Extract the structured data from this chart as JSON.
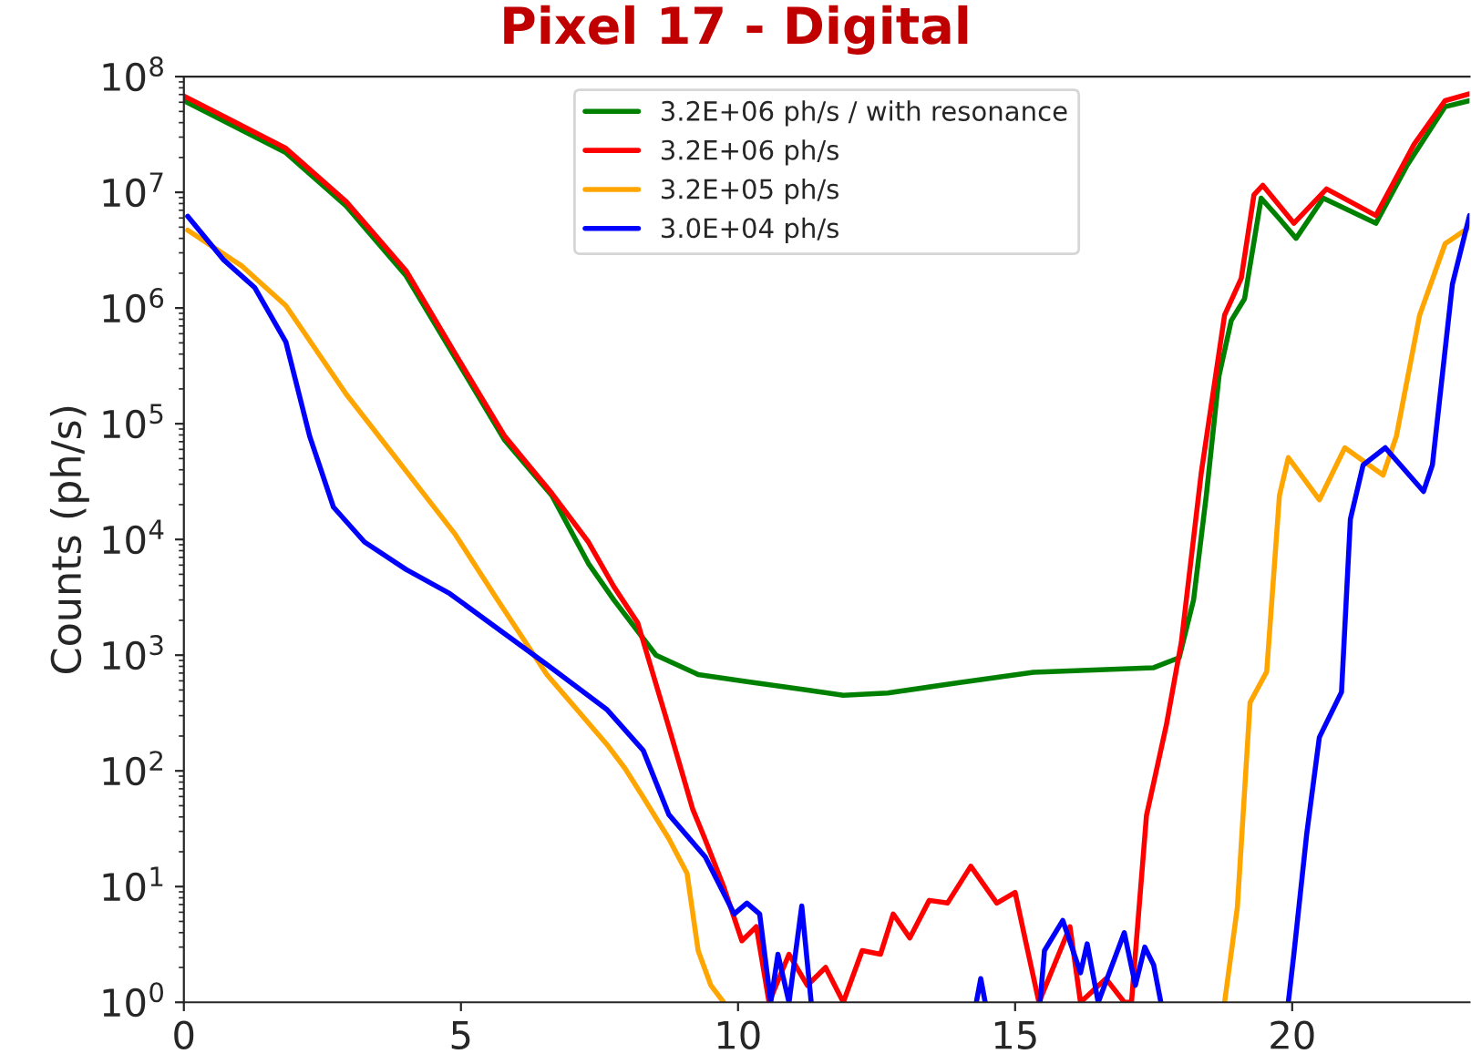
{
  "chart_data": {
    "type": "line",
    "title": "Pixel 17 - Digital",
    "ylabel": "Counts (ph/s)",
    "log": "y",
    "grid": false,
    "legend": "top",
    "xlim": [
      0,
      23.2
    ],
    "xticks": [
      0,
      5,
      10,
      15,
      20
    ],
    "ylim": [
      1,
      100000000.0
    ],
    "yticks": [
      {
        "value": 1,
        "label": "10$^{0}$"
      },
      {
        "value": 10,
        "label": "10$^{1}$"
      },
      {
        "value": 100,
        "label": "10$^{2}$"
      },
      {
        "value": 1000,
        "label": "10$^{3}$"
      },
      {
        "value": 10000,
        "label": "10$^{4}$"
      },
      {
        "value": 100000,
        "label": "10$^{5}$"
      },
      {
        "value": 1000000,
        "label": "10$^{6}$"
      },
      {
        "value": 10000000,
        "label": "10$^{7}$"
      },
      {
        "value": 100000000,
        "label": "10$^{8}$"
      }
    ],
    "series": [
      {
        "name": "3.2E+06 ph/s / with resonance",
        "color": "#008000",
        "x": [
          0,
          1.84,
          2.93,
          4.01,
          4.9,
          5.79,
          6.64,
          7.3,
          7.76,
          8.52,
          9.28,
          10.16,
          11.25,
          11.9,
          12.7,
          14.0,
          15.33,
          17.5,
          17.96,
          18.22,
          18.45,
          18.68,
          18.9,
          19.14,
          19.44,
          19.77,
          20.07,
          20.56,
          21.51,
          22.07,
          22.76,
          23.2
        ],
        "values": [
          62000000.0,
          22000000.0,
          7600000.0,
          1900000.0,
          370000.0,
          72000.0,
          24000.0,
          6200.0,
          3000.0,
          1000.0,
          680,
          590,
          500,
          450,
          470,
          580,
          710,
          780,
          950,
          3000.0,
          24000.0,
          260000.0,
          780000.0,
          1200000.0,
          8900000.0,
          5900000.0,
          4000000.0,
          8900000.0,
          5400000.0,
          17000000.0,
          55000000.0,
          62000000.0
        ]
      },
      {
        "name": "3.2E+06 ph/s",
        "color": "#ff0000",
        "x": [
          0,
          1.84,
          2.93,
          4.01,
          4.9,
          5.79,
          6.64,
          7.3,
          7.76,
          8.19,
          8.75,
          9.18,
          9.4,
          9.74,
          10.07,
          10.33,
          10.56,
          10.92,
          11.25,
          11.58,
          11.9,
          12.24,
          12.57,
          12.8,
          13.1,
          13.45,
          13.78,
          14.2,
          14.67,
          15.0,
          15.2,
          15.43,
          15.99,
          16.18,
          16.64,
          16.97,
          17.1,
          17.37,
          17.73,
          18.0,
          18.36,
          18.78,
          19.08,
          19.31,
          19.47,
          20.03,
          20.62,
          21.51,
          22.2,
          22.76,
          23.2
        ],
        "values": [
          68000000.0,
          24000000.0,
          8300000.0,
          2100000.0,
          400000.0,
          78000.0,
          25000.0,
          9500.0,
          3900.0,
          1900.0,
          240,
          47,
          26,
          10,
          3.4,
          4.5,
          1,
          2.6,
          1.4,
          2.0,
          1,
          2.8,
          2.6,
          5.8,
          3.6,
          7.6,
          7.2,
          15,
          7.2,
          8.9,
          3.2,
          1,
          4.5,
          1,
          1.6,
          1,
          1,
          41,
          250,
          1300.0,
          38000.0,
          870000.0,
          1800000.0,
          9500000.0,
          11500000.0,
          5400000.0,
          10700000.0,
          6300000.0,
          26000000.0,
          62000000.0,
          71000000.0
        ]
      },
      {
        "name": "3.2E+05 ph/s",
        "color": "#ffa500",
        "x": [
          0.07,
          1.05,
          1.84,
          2.93,
          4.01,
          4.9,
          5.66,
          6.55,
          7.63,
          7.96,
          8.29,
          8.75,
          9.08,
          9.28,
          9.51,
          9.74,
          14.0,
          18.78,
          19.01,
          19.24,
          19.54,
          19.77,
          19.93,
          20.49,
          20.95,
          21.64,
          21.88,
          22.3,
          22.76,
          23.2
        ],
        "values": [
          4700000.0,
          2300000.0,
          1050000.0,
          180000.0,
          39000.0,
          11000.0,
          3000.0,
          680,
          170,
          105,
          59,
          26,
          13,
          2.8,
          1.4,
          1,
          null,
          1,
          6.6,
          390,
          720,
          24000.0,
          51000.0,
          22000.0,
          62000.0,
          36000.0,
          78000.0,
          870000.0,
          3600000.0,
          5000000.0
        ]
      },
      {
        "name": "3.0E+04 ph/s",
        "color": "#0000ff",
        "x": [
          0.07,
          0.72,
          1.28,
          1.84,
          2.27,
          2.7,
          3.26,
          4.01,
          4.8,
          6.55,
          7.63,
          8.29,
          8.75,
          9.41,
          9.93,
          10.16,
          10.39,
          10.59,
          10.72,
          10.92,
          11.15,
          11.32,
          12.5,
          14.3,
          14.38,
          14.46,
          14.9,
          15.45,
          15.53,
          15.86,
          16.18,
          16.3,
          16.5,
          16.97,
          17.17,
          17.34,
          17.5,
          17.63,
          18.8,
          19.93,
          20.03,
          20.26,
          20.49,
          20.89,
          21.05,
          21.28,
          21.68,
          22.37,
          22.53,
          22.89,
          23.2
        ],
        "values": [
          6200000.0,
          2600000.0,
          1500000.0,
          510000.0,
          78000.0,
          19000.0,
          9500.0,
          5500.0,
          3400.0,
          830,
          340,
          150,
          42,
          18,
          5.8,
          7.2,
          5.8,
          1,
          2.6,
          1,
          6.8,
          1,
          null,
          1,
          1.6,
          1,
          null,
          1,
          2.8,
          5.1,
          1.8,
          3.2,
          1,
          4.0,
          1.4,
          3.0,
          2.1,
          1,
          null,
          1,
          2.6,
          28,
          195,
          480,
          15000.0,
          44000.0,
          62000.0,
          26000.0,
          44000.0,
          1600000.0,
          6300000.0
        ]
      }
    ]
  }
}
